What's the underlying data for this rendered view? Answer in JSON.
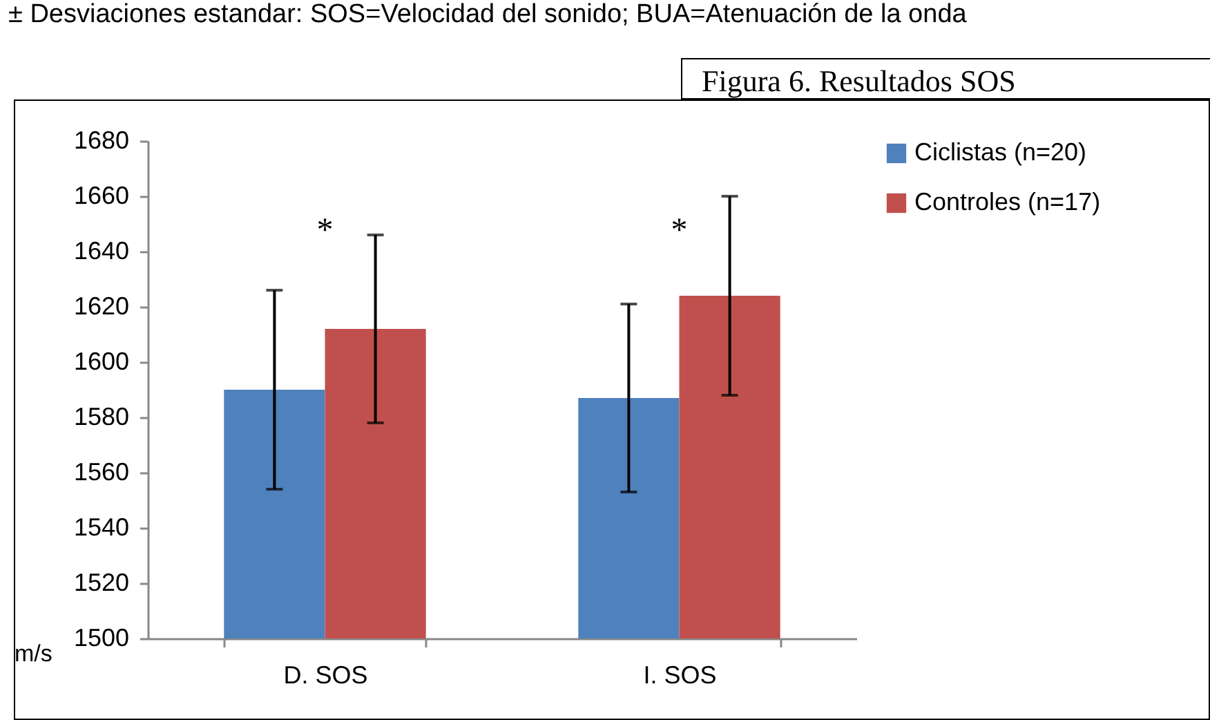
{
  "chart_data": {
    "type": "bar",
    "title": "Figura 6. Resultados SOS",
    "ylabel": "m/s",
    "annotations": [
      "± Desviaciones estandar: SOS=Velocidad del sonido; BUA=Atenuación de la onda",
      "*",
      "*"
    ],
    "categories": [
      "D. SOS",
      "I. SOS"
    ],
    "series": [
      {
        "name": "Ciclistas (n=20)",
        "color": "#4f81bd",
        "values": [
          1590,
          1587
        ],
        "errors": [
          36,
          34
        ]
      },
      {
        "name": "Controles (n=17)",
        "color": "#c0504d",
        "values": [
          1612,
          1624
        ],
        "errors": [
          34,
          36
        ]
      }
    ],
    "ylim": [
      1500,
      1680
    ],
    "yticks": [
      1500,
      1520,
      1540,
      1560,
      1580,
      1600,
      1620,
      1640,
      1660,
      1680
    ],
    "grid": false,
    "legend": "right"
  }
}
